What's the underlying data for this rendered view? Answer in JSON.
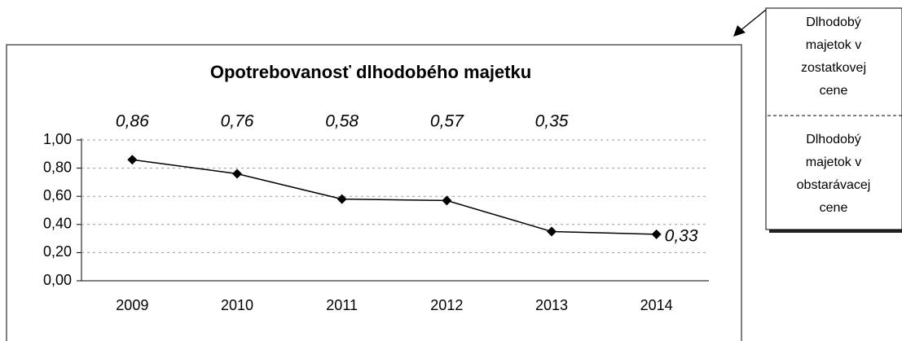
{
  "chart_data": {
    "type": "line",
    "title": "Opotrebovanosť dlhodobého majetku",
    "categories": [
      "2009",
      "2010",
      "2011",
      "2012",
      "2013",
      "2014"
    ],
    "series": [
      {
        "name": "Opotrebovanosť dlhodobého majetku",
        "color": "#000000",
        "values": [
          0.86,
          0.76,
          0.58,
          0.57,
          0.35,
          0.33
        ],
        "value_labels": [
          "0,86",
          "0,76",
          "0,58",
          "0,57",
          "0,35",
          "0,33"
        ]
      }
    ],
    "ylim": [
      0,
      1
    ],
    "yticks": [
      {
        "value": 0,
        "label": "0,00"
      },
      {
        "value": 0.2,
        "label": "0,20"
      },
      {
        "value": 0.4,
        "label": "0,40"
      },
      {
        "value": 0.6,
        "label": "0,60"
      },
      {
        "value": 0.8,
        "label": "0,80"
      },
      {
        "value": 1,
        "label": "1,00"
      }
    ],
    "grid": true,
    "annotation": {
      "numerator": [
        "Dlhodobý",
        "majetok v",
        "zostatkovej",
        "cene"
      ],
      "denominator": [
        "Dlhodobý",
        "majetok v",
        "obstarávacej",
        "cene"
      ]
    }
  }
}
